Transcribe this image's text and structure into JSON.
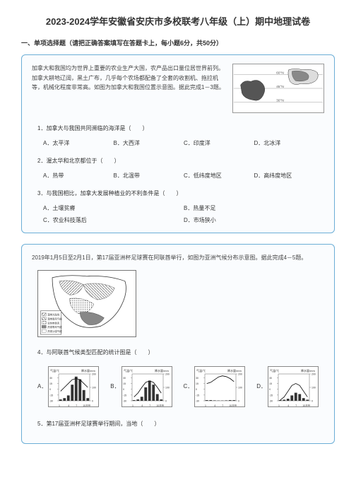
{
  "title": "2023-2024学年安徽省安庆市多校联考八年级（上）期中地理试卷",
  "section1": "一、单项选择题（请把正确答案填写在答题卡上，每小题6分，共50分）",
  "block1": {
    "passage": "加拿大和我国均为世界上重要的农业生产大国，农产品出口量位居世界前列。加拿大耕地辽阔，黑土广布，几乎每个农场都配备了全套的收割机、拖拉机等，机械化程度非常高。如图为加拿大和我国位置示意图。据此完成1－3题。",
    "q1": {
      "text": "1．加拿大与我国共同濒临的海洋是（　　）",
      "a": "A．太平洋",
      "b": "B．大西洋",
      "c": "C．印度洋",
      "d": "D．北冰洋"
    },
    "q2": {
      "text": "2．渥太华和北京都位于（　　）",
      "a": "A．热带",
      "b": "B．北温带",
      "c": "C．低纬度地区",
      "d": "D．高纬度地区"
    },
    "q3": {
      "text": "3．与我国相比，加拿大发展种植业的不利条件是（　　）",
      "a": "A．土壤贫瘠",
      "b": "B．热量不足",
      "c": "C．农业科技落后",
      "d": "D．市场狭小"
    }
  },
  "block2": {
    "passage": "2019年1月5日至2月1日，第17届亚洲杯足球赛在阿联酋举行，如图为亚洲气候分布示意图。据此完成4－5题。",
    "q4": {
      "text": "4．与阿联酋气候类型匹配的统计图是（　　）",
      "a": "A．",
      "b": "B．",
      "c": "C．",
      "d": "D．"
    },
    "q5": {
      "text": "5．第17届亚洲杯足球赛举行期间，当地（　　）"
    }
  },
  "map1": {
    "lat_labels": [
      "60°N",
      "45°N",
      "30°N"
    ],
    "lat_y": [
      15,
      35,
      55
    ]
  },
  "climate_charts": {
    "title_temp": "气温/℃",
    "title_precip": "降水量/mm",
    "x_labels": [
      "1",
      "4",
      "7",
      "10月份"
    ],
    "chart_a": {
      "temps": [
        -5,
        5,
        15,
        25,
        28,
        25,
        15,
        5
      ],
      "precips": [
        10,
        20,
        40,
        120,
        180,
        160,
        80,
        20
      ]
    },
    "chart_b": {
      "temps": [
        -20,
        -10,
        5,
        18,
        22,
        18,
        5,
        -10
      ],
      "precips": [
        5,
        10,
        30,
        100,
        150,
        120,
        50,
        10
      ]
    },
    "chart_c": {
      "temps": [
        15,
        18,
        25,
        32,
        35,
        33,
        28,
        20
      ],
      "precips": [
        5,
        5,
        3,
        2,
        2,
        3,
        5,
        5
      ]
    },
    "chart_d": {
      "temps": [
        -28,
        -20,
        -5,
        10,
        15,
        10,
        -5,
        -20
      ],
      "precips": [
        5,
        8,
        15,
        40,
        60,
        50,
        20,
        8
      ]
    }
  },
  "colors": {
    "border": "#6baed6",
    "map_fill": "#e8e8e8",
    "map_line": "#666666",
    "bar_fill": "#333333"
  }
}
